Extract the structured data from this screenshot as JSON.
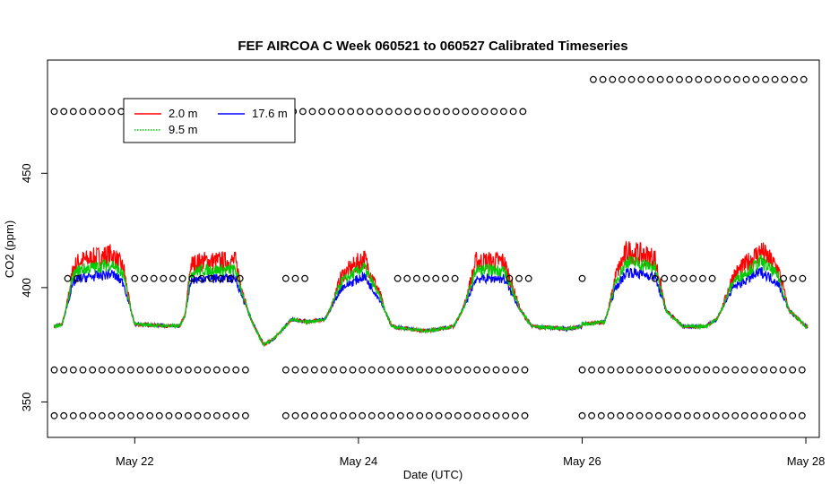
{
  "chart_data": {
    "type": "line",
    "title": "FEF AIRCOA C  Week 060521 to 060527  Calibrated Timeseries",
    "xlabel": "Date (UTC)",
    "ylabel": "CO2 (ppm)",
    "xlim": [
      21.22,
      28.12
    ],
    "ylim": [
      334.5,
      499.5
    ],
    "x_ticks": [
      {
        "value": 22,
        "label": "May 22"
      },
      {
        "value": 24,
        "label": "May 24"
      },
      {
        "value": 26,
        "label": "May 26"
      },
      {
        "value": 28,
        "label": "May 28"
      }
    ],
    "y_ticks": [
      {
        "value": 350,
        "label": "350"
      },
      {
        "value": 400,
        "label": "400"
      },
      {
        "value": 450,
        "label": "450"
      }
    ],
    "legend": {
      "position": "top-left",
      "entries": [
        {
          "label": "2.0 m",
          "color": "#ff0000"
        },
        {
          "label": "9.5 m",
          "color": "#00cc00"
        },
        {
          "label": "17.6 m",
          "color": "#0000ff"
        }
      ]
    },
    "series": [
      {
        "name": "2.0 m",
        "color": "#ff0000",
        "offset": 8
      },
      {
        "name": "9.5 m",
        "color": "#00cc00",
        "offset": 4
      },
      {
        "name": "17.6 m",
        "color": "#0000ff",
        "offset": 0
      }
    ],
    "base_profile": [
      [
        21.28,
        383
      ],
      [
        21.35,
        384
      ],
      [
        21.45,
        402
      ],
      [
        21.5,
        404
      ],
      [
        21.8,
        406
      ],
      [
        21.9,
        402
      ],
      [
        22.0,
        384
      ],
      [
        22.4,
        383
      ],
      [
        22.45,
        388
      ],
      [
        22.5,
        403
      ],
      [
        22.6,
        404
      ],
      [
        22.9,
        404
      ],
      [
        22.97,
        395
      ],
      [
        23.05,
        385
      ],
      [
        23.15,
        375
      ],
      [
        23.25,
        378
      ],
      [
        23.4,
        386
      ],
      [
        23.55,
        385
      ],
      [
        23.7,
        386
      ],
      [
        23.85,
        400
      ],
      [
        24.05,
        405
      ],
      [
        24.2,
        394
      ],
      [
        24.3,
        383
      ],
      [
        24.6,
        381
      ],
      [
        24.85,
        383
      ],
      [
        24.95,
        392
      ],
      [
        25.05,
        404
      ],
      [
        25.3,
        404
      ],
      [
        25.45,
        390
      ],
      [
        25.55,
        383
      ],
      [
        25.85,
        382
      ],
      [
        26.0,
        383
      ],
      [
        26.0,
        384
      ],
      [
        26.2,
        385
      ],
      [
        26.3,
        400
      ],
      [
        26.4,
        407
      ],
      [
        26.65,
        405
      ],
      [
        26.75,
        390
      ],
      [
        26.9,
        383
      ],
      [
        27.1,
        383
      ],
      [
        27.2,
        386
      ],
      [
        27.35,
        400
      ],
      [
        27.6,
        407
      ],
      [
        27.75,
        402
      ],
      [
        27.85,
        390
      ],
      [
        28.0,
        383
      ],
      [
        28.02,
        383
      ]
    ],
    "standards": [
      {
        "value": 344,
        "x_ranges": [
          [
            21.28,
            23.0
          ],
          [
            23.35,
            25.55
          ],
          [
            26.0,
            28.02
          ]
        ]
      },
      {
        "value": 364,
        "x_ranges": [
          [
            21.28,
            23.0
          ],
          [
            23.35,
            25.55
          ],
          [
            26.0,
            28.02
          ]
        ]
      },
      {
        "value": 404,
        "x_ranges": [
          [
            21.4,
            21.55
          ],
          [
            22.0,
            23.0
          ],
          [
            23.35,
            23.55
          ],
          [
            24.35,
            24.9
          ],
          [
            25.35,
            25.55
          ],
          [
            26.0,
            26.08
          ],
          [
            26.65,
            27.2
          ],
          [
            27.8,
            28.02
          ]
        ]
      },
      {
        "value": 477,
        "x_ranges": [
          [
            21.28,
            25.55
          ]
        ]
      },
      {
        "value": 491,
        "x_ranges": [
          [
            26.1,
            28.02
          ]
        ]
      }
    ]
  }
}
